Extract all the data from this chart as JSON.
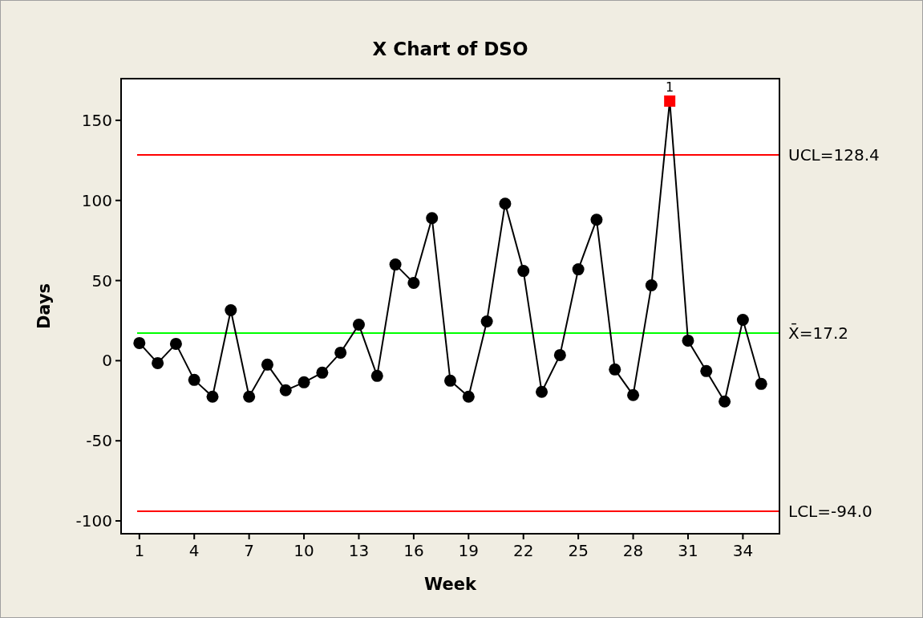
{
  "chart_data": {
    "type": "line",
    "title": "X Chart of DSO",
    "xlabel": "Week",
    "ylabel": "Days",
    "x": [
      1,
      2,
      3,
      4,
      5,
      6,
      7,
      8,
      9,
      10,
      11,
      12,
      13,
      14,
      15,
      16,
      17,
      18,
      19,
      20,
      21,
      22,
      23,
      24,
      25,
      26,
      27,
      28,
      29,
      30,
      31,
      32,
      33,
      34,
      35
    ],
    "series": [
      {
        "color": "#000000",
        "marker": "none",
        "values": [
          11,
          -1.5,
          10.5,
          -12,
          -22.5,
          31.5,
          -22.5,
          -2.5,
          -18.5,
          -13.5,
          -7.5,
          5,
          22.5,
          -9.5,
          60,
          48.5,
          89,
          -12.5,
          -22.5,
          24.5,
          98,
          56,
          -19.5,
          3.5,
          57,
          88,
          -5.5,
          -21.5,
          47,
          162,
          12.5,
          -6.5,
          -25.5,
          25.5,
          -14.5
        ]
      },
      {
        "type": "scatter",
        "color": "#000000",
        "marker": "circle",
        "values": [
          11,
          -1.5,
          10.5,
          -12,
          -22.5,
          31.5,
          -22.5,
          -2.5,
          -18.5,
          -13.5,
          -7.5,
          5,
          22.5,
          -9.5,
          60,
          48.5,
          89,
          -12.5,
          -22.5,
          24.5,
          98,
          56,
          -19.5,
          3.5,
          57,
          88,
          -5.5,
          -21.5,
          47,
          null,
          12.5,
          -6.5,
          -25.5,
          25.5,
          -14.5
        ]
      },
      {
        "type": "scatter",
        "color": "#ff0000",
        "marker": "square",
        "x": [
          30
        ],
        "values": [
          162
        ]
      }
    ],
    "xlim": [
      0,
      36
    ],
    "xticks": [
      1,
      4,
      7,
      10,
      13,
      16,
      19,
      22,
      25,
      28,
      31,
      34
    ],
    "ylim": [
      -108,
      176
    ],
    "yticks": [
      -100,
      -50,
      0,
      50,
      100,
      150
    ],
    "ref_lines": [
      {
        "axis": "y",
        "value": 128.4,
        "label": "UCL=128.4",
        "color": "#ff0000"
      },
      {
        "axis": "y",
        "value": 17.2,
        "label": "X̄=17.2",
        "color": "#00ff00"
      },
      {
        "axis": "y",
        "value": -94,
        "label": "LCL=-94.0",
        "color": "#ff0000"
      }
    ],
    "annotations": [
      {
        "text": "1",
        "x": 30,
        "y": 162
      }
    ],
    "grid": false
  }
}
